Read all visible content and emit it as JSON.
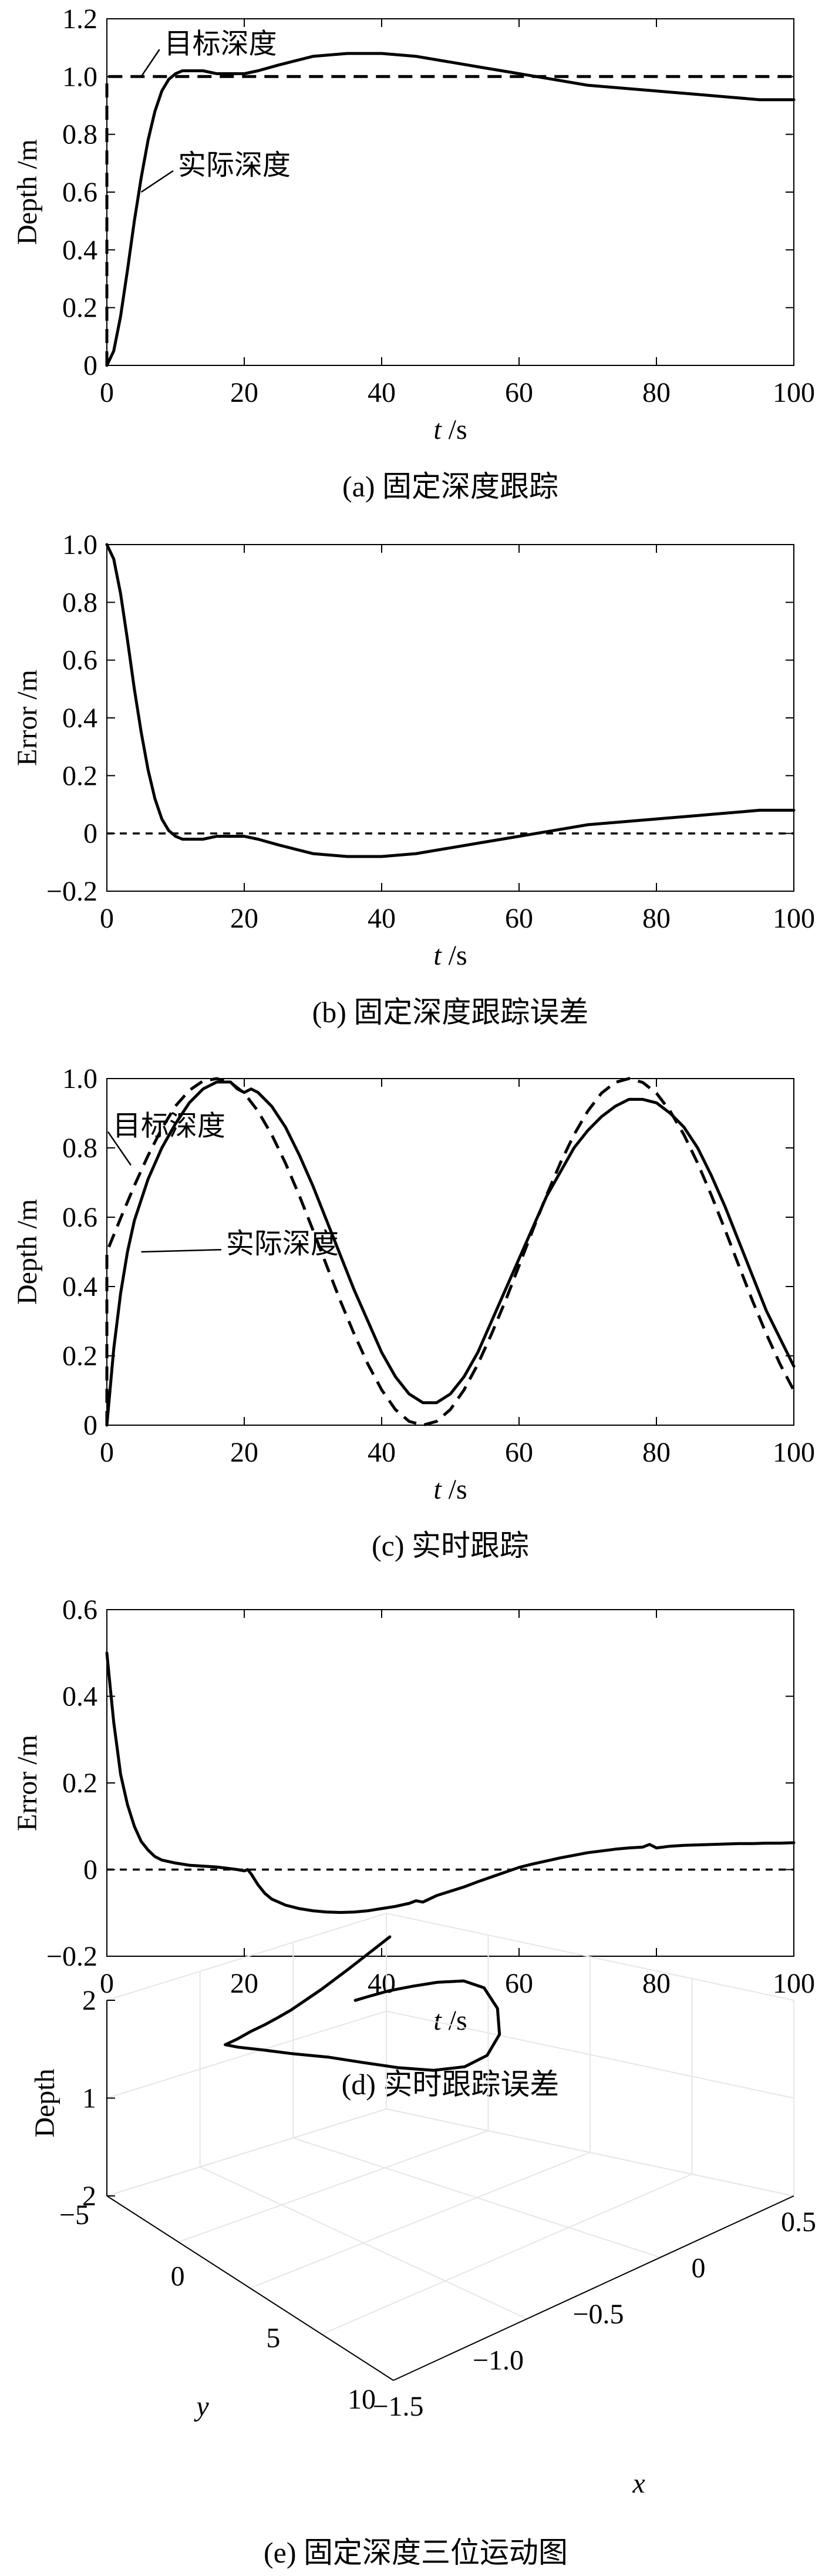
{
  "chart_data": [
    {
      "type": "line",
      "id": "a",
      "caption": "(a) 固定深度跟踪",
      "xlabel_var": "t",
      "xlabel_unit": " /s",
      "ylabel": "Depth /m",
      "xlim": [
        0,
        100
      ],
      "ylim": [
        0,
        1.2
      ],
      "xticks": [
        "0",
        "20",
        "40",
        "60",
        "80",
        "100"
      ],
      "yticks": [
        "0",
        "0.2",
        "0.4",
        "0.6",
        "0.8",
        "1.0",
        "1.2"
      ],
      "grid": false,
      "annotations": [
        {
          "text": "目标深度",
          "target": [
            5,
            1.0
          ],
          "label_at": [
            8,
            1.11
          ]
        },
        {
          "text": "实际深度",
          "target": [
            5,
            0.6
          ],
          "label_at": [
            10,
            0.69
          ]
        }
      ],
      "series": [
        {
          "style": "dashed",
          "x": [
            0,
            0,
            100
          ],
          "y": [
            0,
            1.0,
            1.0
          ]
        },
        {
          "style": "solid",
          "x": [
            0,
            1,
            2,
            3,
            4,
            5,
            6,
            7,
            8,
            9,
            10,
            11,
            12,
            14,
            16,
            18,
            20,
            22,
            25,
            30,
            35,
            40,
            45,
            50,
            55,
            60,
            65,
            70,
            75,
            80,
            85,
            90,
            95,
            100
          ],
          "y": [
            0,
            0.05,
            0.17,
            0.33,
            0.5,
            0.65,
            0.78,
            0.88,
            0.95,
            0.99,
            1.01,
            1.02,
            1.02,
            1.02,
            1.01,
            1.01,
            1.01,
            1.02,
            1.04,
            1.07,
            1.08,
            1.08,
            1.07,
            1.05,
            1.03,
            1.01,
            0.99,
            0.97,
            0.96,
            0.95,
            0.94,
            0.93,
            0.92,
            0.92
          ]
        }
      ]
    },
    {
      "type": "line",
      "id": "b",
      "caption": "(b) 固定深度跟踪误差",
      "xlabel_var": "t",
      "xlabel_unit": " /s",
      "ylabel": "Error /m",
      "xlim": [
        0,
        100
      ],
      "ylim": [
        -0.2,
        1.0
      ],
      "xticks": [
        "0",
        "20",
        "40",
        "60",
        "80",
        "100"
      ],
      "yticks": [
        "−0.2",
        "0",
        "0.2",
        "0.4",
        "0.6",
        "0.8",
        "1.0"
      ],
      "grid": false,
      "annotations": [],
      "series": [
        {
          "style": "dashed-thin",
          "x": [
            0,
            100
          ],
          "y": [
            0,
            0
          ]
        },
        {
          "style": "solid",
          "x": [
            0,
            1,
            2,
            3,
            4,
            5,
            6,
            7,
            8,
            9,
            10,
            11,
            12,
            14,
            16,
            18,
            20,
            22,
            25,
            30,
            35,
            40,
            45,
            50,
            55,
            60,
            65,
            70,
            75,
            80,
            85,
            90,
            95,
            100
          ],
          "y": [
            1.0,
            0.95,
            0.83,
            0.67,
            0.5,
            0.35,
            0.22,
            0.12,
            0.05,
            0.01,
            -0.01,
            -0.02,
            -0.02,
            -0.02,
            -0.01,
            -0.01,
            -0.01,
            -0.02,
            -0.04,
            -0.07,
            -0.08,
            -0.08,
            -0.07,
            -0.05,
            -0.03,
            -0.01,
            0.01,
            0.03,
            0.04,
            0.05,
            0.06,
            0.07,
            0.08,
            0.08
          ]
        }
      ]
    },
    {
      "type": "line",
      "id": "c",
      "caption": "(c) 实时跟踪",
      "xlabel_var": "t",
      "xlabel_unit": " /s",
      "ylabel": "Depth /m",
      "xlim": [
        0,
        100
      ],
      "ylim": [
        0,
        1.0
      ],
      "xticks": [
        "0",
        "20",
        "40",
        "60",
        "80",
        "100"
      ],
      "yticks": [
        "0",
        "0.2",
        "0.4",
        "0.6",
        "0.8",
        "1.0"
      ],
      "grid": false,
      "annotations": [
        {
          "text": "目标深度",
          "target": [
            3.5,
            0.75
          ],
          "label_at": [
            0.5,
            0.86
          ]
        },
        {
          "text": "实际深度",
          "target": [
            5,
            0.5
          ],
          "label_at": [
            17,
            0.52
          ]
        }
      ],
      "series": [
        {
          "style": "dashed",
          "x": [
            0,
            0,
            2,
            4,
            6,
            8,
            10,
            12,
            14,
            16,
            18,
            20,
            22,
            24,
            26,
            28,
            30,
            32,
            34,
            36,
            38,
            40,
            42,
            44,
            46,
            48,
            50,
            52,
            54,
            56,
            58,
            60,
            62,
            64,
            66,
            68,
            70,
            72,
            74,
            76,
            78,
            80,
            82,
            84,
            86,
            88,
            90,
            92,
            94,
            96,
            98,
            100
          ],
          "y": [
            0.0,
            0.5,
            0.597,
            0.691,
            0.778,
            0.856,
            0.921,
            0.966,
            0.993,
            1.0,
            0.989,
            0.958,
            0.906,
            0.838,
            0.756,
            0.663,
            0.563,
            0.46,
            0.358,
            0.263,
            0.176,
            0.102,
            0.045,
            0.011,
            0.0,
            0.011,
            0.045,
            0.102,
            0.176,
            0.263,
            0.358,
            0.46,
            0.563,
            0.663,
            0.756,
            0.838,
            0.906,
            0.958,
            0.989,
            1.0,
            0.989,
            0.958,
            0.906,
            0.838,
            0.756,
            0.663,
            0.563,
            0.46,
            0.358,
            0.263,
            0.176,
            0.1
          ]
        },
        {
          "style": "solid",
          "x": [
            0,
            1,
            2,
            3,
            4,
            6,
            8,
            10,
            12,
            14,
            16,
            18,
            19,
            20,
            21,
            22,
            24,
            26,
            28,
            30,
            32,
            34,
            36,
            38,
            40,
            42,
            44,
            46,
            48,
            50,
            52,
            54,
            56,
            58,
            60,
            62,
            64,
            66,
            68,
            70,
            72,
            74,
            76,
            78,
            80,
            82,
            84,
            86,
            88,
            90,
            92,
            94,
            96,
            98,
            100
          ],
          "y": [
            0.0,
            0.22,
            0.38,
            0.5,
            0.59,
            0.71,
            0.8,
            0.87,
            0.93,
            0.97,
            0.99,
            0.99,
            0.97,
            0.96,
            0.97,
            0.96,
            0.92,
            0.86,
            0.78,
            0.69,
            0.59,
            0.49,
            0.39,
            0.3,
            0.21,
            0.14,
            0.09,
            0.065,
            0.065,
            0.09,
            0.14,
            0.21,
            0.3,
            0.39,
            0.48,
            0.57,
            0.66,
            0.73,
            0.8,
            0.85,
            0.89,
            0.92,
            0.94,
            0.94,
            0.93,
            0.9,
            0.86,
            0.8,
            0.72,
            0.63,
            0.53,
            0.43,
            0.33,
            0.25,
            0.17
          ]
        }
      ]
    },
    {
      "type": "line",
      "id": "d",
      "caption": "(d) 实时跟踪误差",
      "xlabel_var": "t",
      "xlabel_unit": " /s",
      "ylabel": "Error /m",
      "xlim": [
        0,
        100
      ],
      "ylim": [
        -0.2,
        0.6
      ],
      "xticks": [
        "0",
        "20",
        "40",
        "60",
        "80",
        "100"
      ],
      "yticks": [
        "−0.2",
        "0",
        "0.2",
        "0.4",
        "0.6"
      ],
      "grid": false,
      "annotations": [],
      "series": [
        {
          "style": "dashed-thin",
          "x": [
            0,
            100
          ],
          "y": [
            0,
            0
          ]
        },
        {
          "style": "solid",
          "x": [
            0,
            0.5,
            1,
            1.5,
            2,
            3,
            4,
            5,
            6,
            7,
            8,
            10,
            12,
            14,
            16,
            18,
            19,
            20,
            20.5,
            21,
            22,
            23,
            24,
            26,
            28,
            30,
            32,
            34,
            36,
            38,
            40,
            42,
            44,
            45,
            46,
            48,
            50,
            52,
            54,
            56,
            58,
            60,
            62,
            64,
            66,
            68,
            70,
            72,
            74,
            76,
            78,
            79,
            80,
            82,
            84,
            86,
            88,
            90,
            92,
            94,
            96,
            98,
            100
          ],
          "y": [
            0.5,
            0.42,
            0.34,
            0.28,
            0.22,
            0.15,
            0.1,
            0.065,
            0.045,
            0.03,
            0.022,
            0.015,
            0.01,
            0.008,
            0.006,
            0.002,
            0.0,
            -0.003,
            0.0,
            -0.01,
            -0.035,
            -0.055,
            -0.068,
            -0.082,
            -0.09,
            -0.095,
            -0.098,
            -0.099,
            -0.098,
            -0.095,
            -0.09,
            -0.085,
            -0.078,
            -0.072,
            -0.075,
            -0.06,
            -0.05,
            -0.04,
            -0.028,
            -0.017,
            -0.006,
            0.005,
            0.013,
            0.02,
            0.027,
            0.033,
            0.039,
            0.043,
            0.047,
            0.05,
            0.052,
            0.058,
            0.05,
            0.054,
            0.056,
            0.057,
            0.058,
            0.059,
            0.06,
            0.06,
            0.061,
            0.061,
            0.062
          ]
        }
      ]
    },
    {
      "type": "line3d",
      "id": "e",
      "caption": "(e) 固定深度三位运动图",
      "xlabel": "x",
      "ylabel": "y",
      "zlabel": "Depth",
      "xlim": [
        -1.5,
        0.5
      ],
      "ylim": [
        -5,
        10
      ],
      "zlim": [
        0,
        2
      ],
      "xticks": [
        "−1.5",
        "−1.0",
        "−0.5",
        "0",
        "0.5"
      ],
      "yticks": [
        "−5",
        "0",
        "5",
        "10"
      ],
      "zticks": [
        "2",
        "1",
        "2"
      ],
      "grid": true,
      "series": [
        {
          "style": "solid",
          "x": [
            -0.45,
            -0.45,
            -0.42,
            -0.36,
            -0.3,
            -0.24,
            -0.17,
            -0.12,
            -0.09,
            -0.1,
            -0.16,
            -0.25,
            -0.37,
            -0.5,
            -0.63,
            -0.75,
            -0.88,
            -0.98,
            -1.06,
            -1.1,
            -1.09,
            -1.06,
            -1.02,
            -0.98,
            -0.93,
            -0.88,
            -0.8,
            -0.68,
            -0.5
          ],
          "y": [
            8.0,
            8.0,
            7.73,
            7.22,
            6.59,
            5.91,
            5.26,
            4.72,
            4.33,
            4.12,
            4.14,
            4.37,
            4.74,
            5.21,
            5.74,
            6.28,
            6.82,
            7.32,
            7.74,
            8.0,
            7.45,
            7.05,
            6.74,
            6.51,
            6.35,
            6.24,
            6.11,
            5.93,
            5.67
          ],
          "z": [
            1.26,
            1.26,
            1.3,
            1.37,
            1.44,
            1.51,
            1.54,
            1.49,
            1.3,
            1.07,
            0.91,
            0.85,
            0.88,
            0.97,
            1.08,
            1.18,
            1.27,
            1.34,
            1.39,
            1.42,
            1.54,
            1.64,
            1.71,
            1.77,
            1.82,
            1.87,
            1.94,
            2.06,
            2.25
          ]
        }
      ]
    }
  ]
}
